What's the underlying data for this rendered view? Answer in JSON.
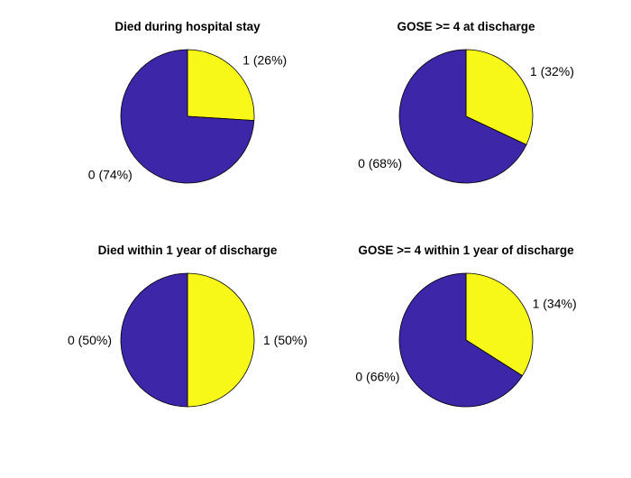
{
  "chart_data": [
    {
      "type": "pie",
      "title": "Died during hospital stay",
      "slices": [
        {
          "category": "1",
          "value": 26,
          "label": "1 (26%)",
          "color": "#F7F718"
        },
        {
          "category": "0",
          "value": 74,
          "label": "0 (74%)",
          "color": "#3E26A8"
        }
      ]
    },
    {
      "type": "pie",
      "title": "GOSE >= 4 at discharge",
      "slices": [
        {
          "category": "1",
          "value": 32,
          "label": "1 (32%)",
          "color": "#F7F718"
        },
        {
          "category": "0",
          "value": 68,
          "label": "0 (68%)",
          "color": "#3E26A8"
        }
      ]
    },
    {
      "type": "pie",
      "title": "Died within 1 year of discharge",
      "slices": [
        {
          "category": "1",
          "value": 50,
          "label": "1 (50%)",
          "color": "#F7F718"
        },
        {
          "category": "0",
          "value": 50,
          "label": "0 (50%)",
          "color": "#3E26A8"
        }
      ]
    },
    {
      "type": "pie",
      "title": "GOSE >= 4 within 1 year of discharge",
      "slices": [
        {
          "category": "1",
          "value": 34,
          "label": "1 (34%)",
          "color": "#F7F718"
        },
        {
          "category": "0",
          "value": 66,
          "label": "0 (66%)",
          "color": "#3E26A8"
        }
      ]
    }
  ]
}
